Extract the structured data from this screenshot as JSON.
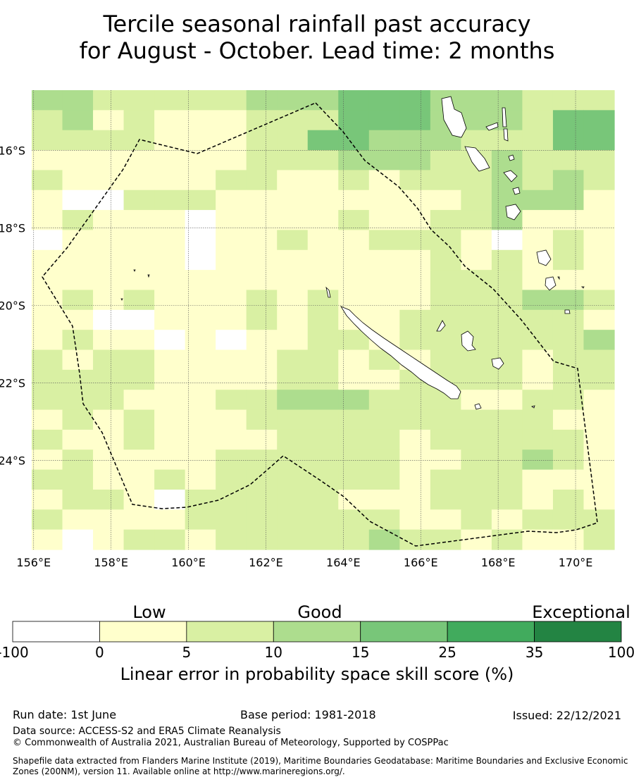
{
  "title": {
    "line1": "Tercile seasonal rainfall past accuracy",
    "line2": "for August - October. Lead time: 2 months"
  },
  "map": {
    "lon_ticks": [
      "156°E",
      "158°E",
      "160°E",
      "162°E",
      "164°E",
      "166°E",
      "168°E",
      "170°E"
    ],
    "lat_ticks": [
      "16°S",
      "18°S",
      "20°S",
      "22°S",
      "24°S"
    ],
    "lon_range": [
      155.95,
      171.0
    ],
    "lat_range": [
      -14.45,
      -26.3
    ],
    "eez_boundary_color": "#000000",
    "coastline_color": "#000000"
  },
  "legend": {
    "categories": [
      "Low",
      "Good",
      "Exceptional"
    ],
    "bins": [
      "-100",
      "0",
      "5",
      "10",
      "15",
      "25",
      "35",
      "100"
    ],
    "colors": [
      "#ffffff",
      "#ffffcc",
      "#d9f0a3",
      "#addd8e",
      "#78c679",
      "#41ab5d",
      "#238443"
    ],
    "label": "Linear error in probability space skill score (%)"
  },
  "grid": {
    "rows": [
      "3322222333444333222",
      "2312111222444333244",
      "2222111224433322244",
      "1111111222333223222",
      "2111112211212223232",
      "1002221111111123331",
      "1211101111211223111",
      "0111101121122210121",
      "1111101111111212121",
      "1111111111111222111",
      "1212111212111222332",
      "1100111212112222221",
      "1211010112212222223",
      "2122111122121222122",
      "2222111122112222122",
      "2221112233322211221",
      "1212111222222222211",
      "2112111122221222221",
      "1211112222221122321",
      "2211212222221222111",
      "1221022222111222121",
      "2111122222221121222",
      "1012212222232212112"
    ]
  },
  "footer": {
    "run_date": "Run date: 1st June",
    "base_period": "Base period: 1981-2018",
    "issued": "Issued: 22/12/2021",
    "data_source": "Data source: ACCESS-S2 and ERA5 Climate Reanalysis",
    "copyright": "© Commonwealth of Australia 2021, Australian Bureau of Meteorology, Supported by COSPPac",
    "shapefile": "Shapefile data extracted from Flanders Marine Institute (2019), Maritime Boundaries Geodatabase: Maritime Boundaries and Exclusive Economic Zones (200NM), version 11. Available online at http://www.marineregions.org/."
  }
}
